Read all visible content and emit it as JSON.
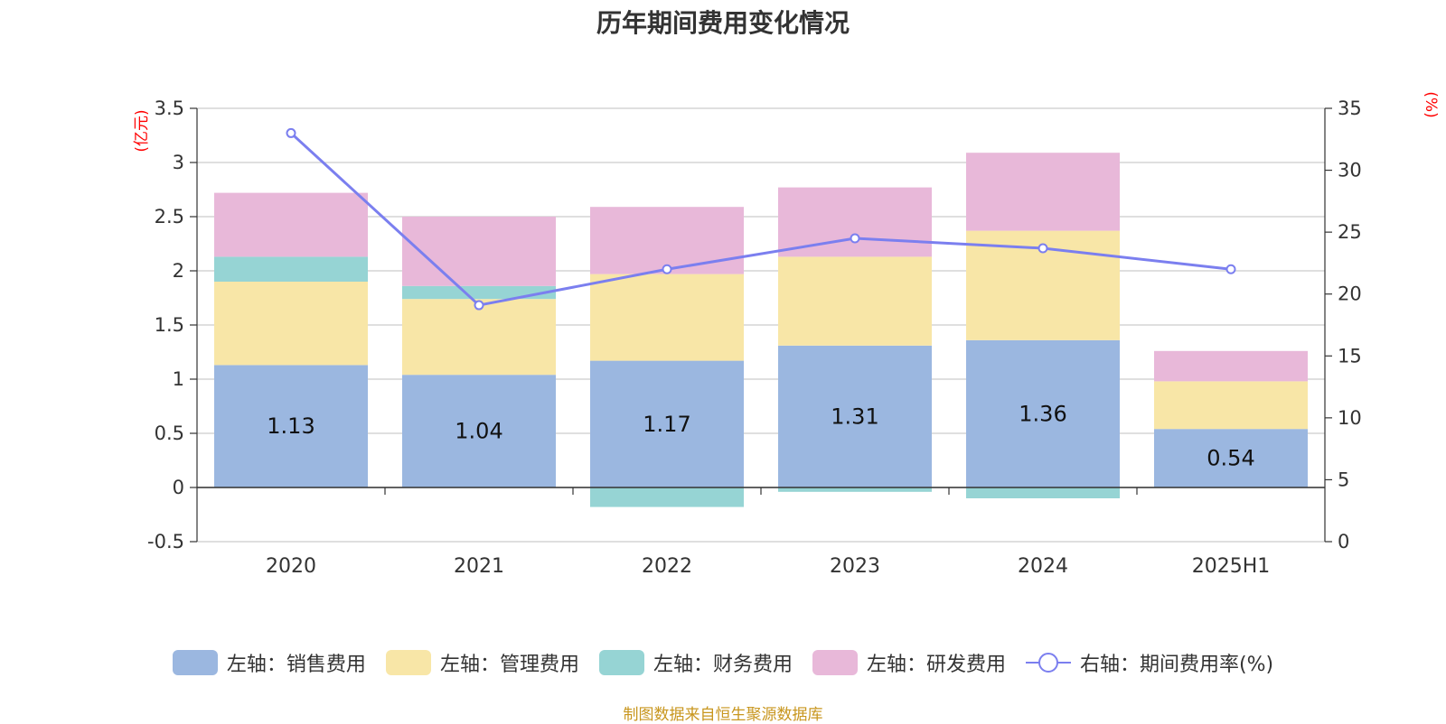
{
  "title": "历年期间费用变化情况",
  "left_unit": "(亿元)",
  "right_unit": "(%)",
  "source": "制图数据来自恒生聚源数据库",
  "colors": {
    "sales": "#9bb7e0",
    "admin": "#f8e6a7",
    "finance": "#96d4d4",
    "rnd": "#e8b8d9",
    "rate": "#7b7fef",
    "axis": "#333333",
    "grid": "#cccccc"
  },
  "legend": [
    {
      "label": "左轴：销售费用",
      "color": "#9bb7e0",
      "kind": "bar"
    },
    {
      "label": "左轴：管理费用",
      "color": "#f8e6a7",
      "kind": "bar"
    },
    {
      "label": "左轴：财务费用",
      "color": "#96d4d4",
      "kind": "bar"
    },
    {
      "label": "左轴：研发费用",
      "color": "#e8b8d9",
      "kind": "bar"
    },
    {
      "label": "右轴：期间费用率(%)",
      "color": "#7b7fef",
      "kind": "line"
    }
  ],
  "chart_data": {
    "type": "bar",
    "stacked": true,
    "categories": [
      "2020",
      "2021",
      "2022",
      "2023",
      "2024",
      "2025H1"
    ],
    "series": [
      {
        "name": "左轴：销售费用",
        "axis": "left",
        "values": [
          1.13,
          1.04,
          1.17,
          1.31,
          1.36,
          0.54
        ],
        "show_labels": true
      },
      {
        "name": "左轴：管理费用",
        "axis": "left",
        "values": [
          0.77,
          0.7,
          0.8,
          0.82,
          1.01,
          0.44
        ]
      },
      {
        "name": "左轴：财务费用",
        "axis": "left",
        "values": [
          0.23,
          0.12,
          -0.18,
          -0.04,
          -0.1,
          0.0
        ]
      },
      {
        "name": "左轴：研发费用",
        "axis": "left",
        "values": [
          0.59,
          0.64,
          0.62,
          0.64,
          0.72,
          0.28
        ]
      },
      {
        "name": "右轴：期间费用率(%)",
        "axis": "right",
        "type": "line",
        "values": [
          33.0,
          19.1,
          22.0,
          24.5,
          23.7,
          22.0
        ]
      }
    ],
    "left_axis": {
      "min": -0.5,
      "max": 3.5,
      "ticks": [
        "3.5",
        "3",
        "2.5",
        "2",
        "1.5",
        "1",
        "0.5",
        "0",
        "-0.5"
      ]
    },
    "right_axis": {
      "min": 0,
      "max": 35,
      "ticks": [
        "35",
        "30",
        "25",
        "20",
        "15",
        "10",
        "5",
        "0"
      ]
    },
    "grid": true,
    "legend_position": "bottom"
  }
}
